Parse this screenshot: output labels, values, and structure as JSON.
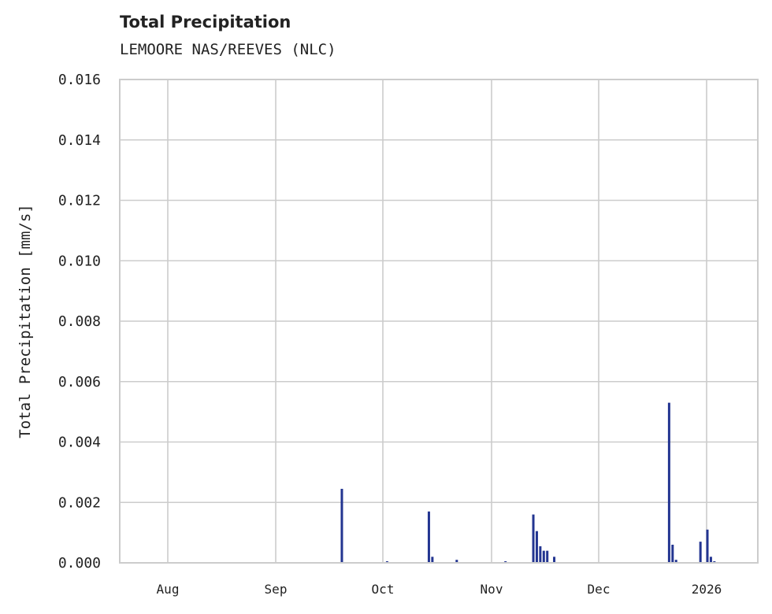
{
  "chart_data": {
    "type": "bar",
    "title": "Total Precipitation",
    "subtitle": "LEMOORE NAS/REEVES (NLC)",
    "xlabel": "",
    "ylabel": "Total Precipitation [mm/s]",
    "ylim": [
      0,
      0.016
    ],
    "yticks": [
      "0.000",
      "0.002",
      "0.004",
      "0.006",
      "0.008",
      "0.010",
      "0.012",
      "0.014",
      "0.016"
    ],
    "xticks": [
      "Aug",
      "Sep",
      "Oct",
      "Nov",
      "Dec",
      "2026"
    ],
    "grid": true,
    "legend": null,
    "color": "#233591",
    "x": [
      "2025-07-18",
      "2025-09-20",
      "2025-10-03",
      "2025-10-15",
      "2025-10-16",
      "2025-10-23",
      "2025-11-06",
      "2025-11-14",
      "2025-11-15",
      "2025-11-16",
      "2025-11-17",
      "2025-11-18",
      "2025-11-20",
      "2025-12-23",
      "2025-12-24",
      "2025-12-25",
      "2026-01-01",
      "2026-01-03",
      "2026-01-04",
      "2026-01-05"
    ],
    "values": [
      0,
      0.00245,
      5e-05,
      0.0017,
      0.0002,
      0.0001,
      5e-05,
      0.0016,
      0.00105,
      0.00055,
      0.0004,
      0.0004,
      0.0002,
      0.0053,
      0.0006,
      0.0001,
      0.0007,
      0.0011,
      0.0002,
      5e-05
    ]
  }
}
